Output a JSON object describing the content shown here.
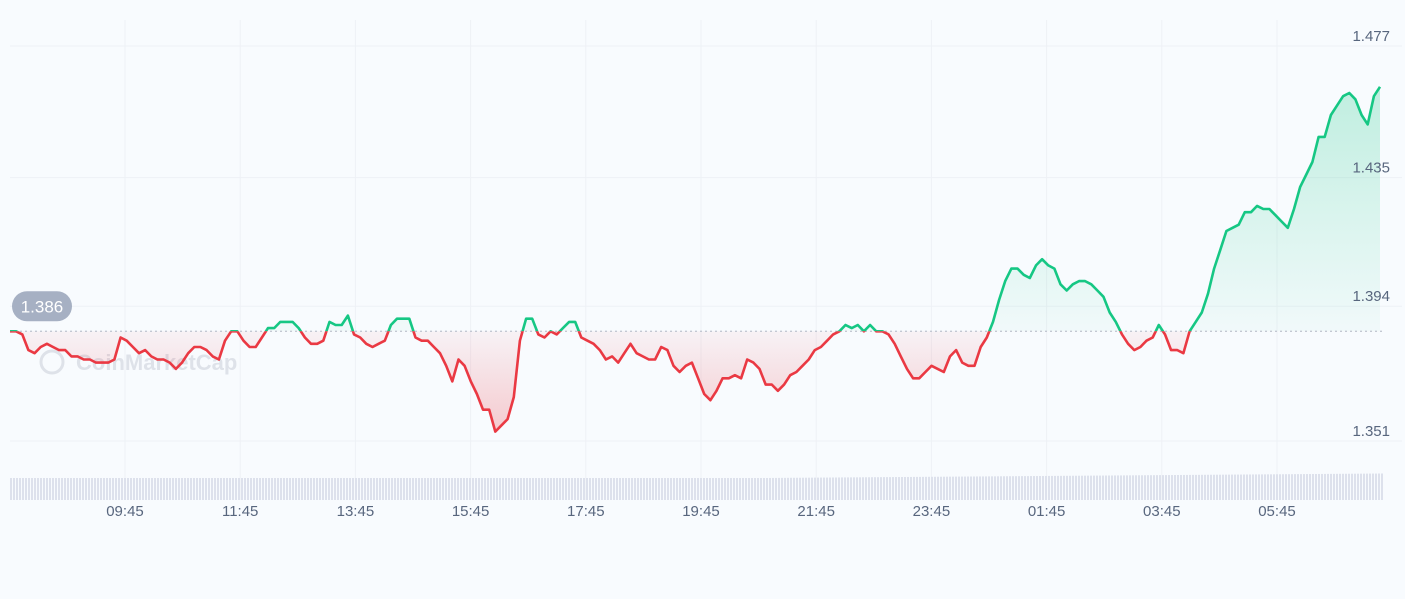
{
  "watermark": "CoinMarketCap",
  "colors": {
    "up": "#16c784",
    "down": "#ea3943",
    "grid": "#eef1f6",
    "axis_text": "#58667e",
    "baseline": "#c3c8d2",
    "badge_bg": "#a6b0c3",
    "volume": "#dde1ec"
  },
  "chart_data": {
    "type": "line",
    "baseline_value": 1.386,
    "baseline_label": "1.386",
    "ylim": [
      1.351,
      1.477
    ],
    "y_ticks": [
      "1.477",
      "1.435",
      "1.394",
      "1.351"
    ],
    "y_tick_values": [
      1.477,
      1.435,
      1.394,
      1.351
    ],
    "x_ticks": [
      "09:45",
      "11:45",
      "13:45",
      "15:45",
      "17:45",
      "19:45",
      "21:45",
      "23:45",
      "01:45",
      "03:45",
      "05:45"
    ],
    "grid": true,
    "x_start": "07:45",
    "x_end": "07:40",
    "series": [
      {
        "values": [
          1.386,
          1.386,
          1.385,
          1.38,
          1.379,
          1.381,
          1.382,
          1.381,
          1.38,
          1.38,
          1.378,
          1.378,
          1.377,
          1.377,
          1.376,
          1.376,
          1.376,
          1.377,
          1.384,
          1.383,
          1.381,
          1.379,
          1.38,
          1.378,
          1.377,
          1.377,
          1.376,
          1.374,
          1.376,
          1.379,
          1.381,
          1.381,
          1.38,
          1.378,
          1.377,
          1.383,
          1.386,
          1.386,
          1.383,
          1.381,
          1.381,
          1.384,
          1.387,
          1.387,
          1.389,
          1.389,
          1.389,
          1.387,
          1.384,
          1.382,
          1.382,
          1.383,
          1.389,
          1.388,
          1.388,
          1.391,
          1.385,
          1.384,
          1.382,
          1.381,
          1.382,
          1.383,
          1.388,
          1.39,
          1.39,
          1.39,
          1.384,
          1.383,
          1.383,
          1.381,
          1.379,
          1.375,
          1.37,
          1.377,
          1.375,
          1.37,
          1.366,
          1.361,
          1.361,
          1.354,
          1.356,
          1.358,
          1.365,
          1.383,
          1.39,
          1.39,
          1.385,
          1.384,
          1.386,
          1.385,
          1.387,
          1.389,
          1.389,
          1.384,
          1.383,
          1.382,
          1.38,
          1.377,
          1.378,
          1.376,
          1.379,
          1.382,
          1.379,
          1.378,
          1.377,
          1.377,
          1.381,
          1.38,
          1.375,
          1.373,
          1.375,
          1.376,
          1.371,
          1.366,
          1.364,
          1.367,
          1.371,
          1.371,
          1.372,
          1.371,
          1.377,
          1.376,
          1.374,
          1.369,
          1.369,
          1.367,
          1.369,
          1.372,
          1.373,
          1.375,
          1.377,
          1.38,
          1.381,
          1.383,
          1.385,
          1.386,
          1.388,
          1.387,
          1.388,
          1.386,
          1.388,
          1.386,
          1.386,
          1.385,
          1.382,
          1.378,
          1.374,
          1.371,
          1.371,
          1.373,
          1.375,
          1.374,
          1.373,
          1.378,
          1.38,
          1.376,
          1.375,
          1.375,
          1.381,
          1.384,
          1.389,
          1.396,
          1.402,
          1.406,
          1.406,
          1.404,
          1.403,
          1.407,
          1.409,
          1.407,
          1.406,
          1.401,
          1.399,
          1.401,
          1.402,
          1.402,
          1.401,
          1.399,
          1.397,
          1.392,
          1.389,
          1.385,
          1.382,
          1.38,
          1.381,
          1.383,
          1.384,
          1.388,
          1.385,
          1.38,
          1.38,
          1.379,
          1.386,
          1.389,
          1.392,
          1.398,
          1.406,
          1.412,
          1.418,
          1.419,
          1.42,
          1.424,
          1.424,
          1.426,
          1.425,
          1.425,
          1.423,
          1.421,
          1.419,
          1.425,
          1.432,
          1.436,
          1.44,
          1.448,
          1.448,
          1.455,
          1.458,
          1.461,
          1.462,
          1.46,
          1.455,
          1.452,
          1.461,
          1.464
        ]
      }
    ]
  }
}
